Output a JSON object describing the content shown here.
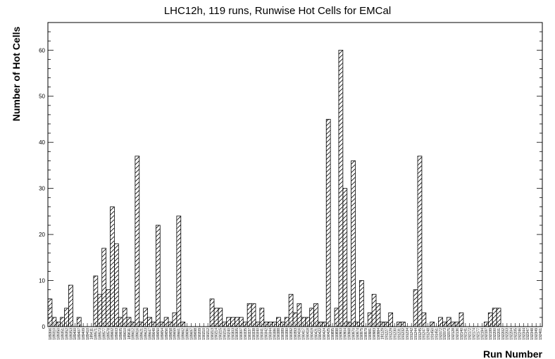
{
  "chart_data": {
    "type": "bar",
    "title": "LHC12h, 119 runs, Runwise Hot Cells for EMCal",
    "xlabel": "Run Number",
    "ylabel": "Number of Hot Cells",
    "ylim": [
      0,
      66
    ],
    "yticks": [
      0,
      10,
      20,
      30,
      40,
      50,
      60
    ],
    "grid": false,
    "fill_pattern": "hatched",
    "categories": [
      "189306",
      "189310",
      "189350",
      "189351",
      "189352",
      "189353",
      "189400",
      "189407",
      "189409",
      "189410",
      "189411",
      "189571",
      "189573",
      "189577",
      "189578",
      "189602",
      "189603",
      "189605",
      "189610",
      "189611",
      "189612",
      "189616",
      "189621",
      "189623",
      "189647",
      "189648",
      "189650",
      "189654",
      "189656",
      "189658",
      "189659",
      "189661",
      "189662",
      "189696",
      "189697",
      "189698",
      "190209",
      "190210",
      "190212",
      "190213",
      "190214",
      "190215",
      "190216",
      "190240",
      "190303",
      "190305",
      "190307",
      "190335",
      "190337",
      "190338",
      "190340",
      "190341",
      "190342",
      "190344",
      "190386",
      "190388",
      "190389",
      "190390",
      "190392",
      "190393",
      "190416",
      "190417",
      "190418",
      "190419",
      "190421",
      "190422",
      "190424",
      "190425",
      "190895",
      "190898",
      "190903",
      "190904",
      "190968",
      "190970",
      "190974",
      "190975",
      "190979",
      "190981",
      "190983",
      "190984",
      "191129",
      "191227",
      "191229",
      "191230",
      "191231",
      "191232",
      "191234",
      "191242",
      "191244",
      "191245",
      "191247",
      "191248",
      "191450",
      "191451",
      "192072",
      "192073",
      "192075",
      "192128",
      "192136",
      "192140",
      "192141",
      "192172",
      "192174",
      "192177",
      "192194",
      "192197",
      "192199",
      "192200",
      "192201",
      "192202",
      "192203",
      "192204",
      "192205",
      "192246",
      "192344",
      "192347",
      "192348",
      "192349",
      "192461"
    ],
    "values": [
      6,
      2,
      1,
      2,
      4,
      9,
      0,
      2,
      0,
      0,
      0,
      11,
      7,
      17,
      8,
      26,
      18,
      2,
      4,
      2,
      1,
      37,
      1,
      4,
      2,
      1,
      22,
      1,
      2,
      1,
      3,
      24,
      1,
      0,
      0,
      0,
      0,
      0,
      0,
      6,
      4,
      4,
      1,
      2,
      2,
      2,
      2,
      1,
      5,
      5,
      1,
      4,
      1,
      1,
      1,
      2,
      1,
      2,
      7,
      3,
      5,
      2,
      2,
      4,
      5,
      1,
      1,
      45,
      0,
      4,
      60,
      30,
      1,
      36,
      1,
      10,
      0,
      3,
      7,
      5,
      1,
      1,
      3,
      0,
      1,
      1,
      0,
      0,
      8,
      37,
      3,
      0,
      1,
      0,
      2,
      1,
      2,
      1,
      1,
      3,
      0,
      0,
      0,
      0,
      0,
      1,
      3,
      4,
      4,
      0,
      0,
      0,
      0,
      0,
      0,
      0,
      0,
      0,
      0
    ]
  }
}
